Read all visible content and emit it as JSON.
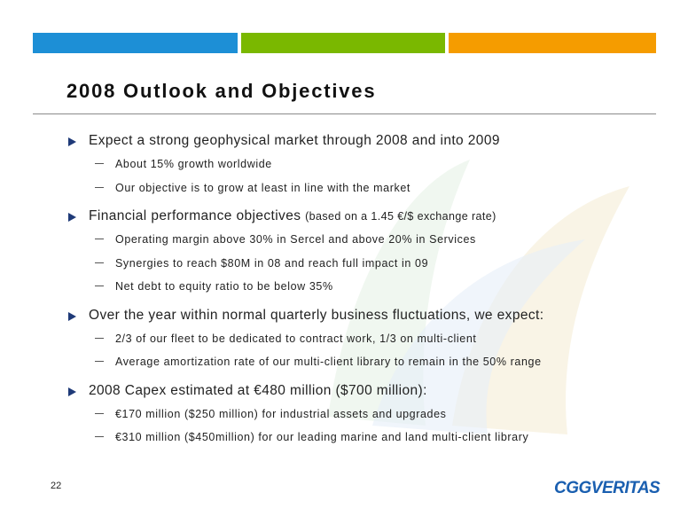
{
  "header": {
    "title": "2008 Outlook and Objectives"
  },
  "bullets": [
    {
      "text": "Expect a strong geophysical market through 2008 and into 2009",
      "subitems": [
        "About 15% growth worldwide",
        "Our objective is to grow at least in line with the market"
      ]
    },
    {
      "text": "Financial performance objectives",
      "note": "(based on a 1.45 €/$ exchange rate)",
      "subitems": [
        "Operating margin above 30% in Sercel and above 20% in Services",
        "Synergies to reach $80M in 08 and reach full impact in 09",
        "Net debt to equity ratio to be below 35%"
      ]
    },
    {
      "text": "Over the year within normal quarterly business fluctuations, we expect:",
      "subitems": [
        "2/3 of our fleet to be dedicated to contract work, 1/3 on multi-client",
        "Average amortization rate of our multi-client library to remain in the 50% range"
      ]
    },
    {
      "text": "2008 Capex estimated at €480 million ($700 million):",
      "subitems": [
        "€170 million ($250 million) for industrial assets and upgrades",
        "€310 million ($450million) for our leading marine and land multi-client library"
      ]
    }
  ],
  "footer": {
    "page_number": "22",
    "logo": "CGGVERITAS"
  }
}
